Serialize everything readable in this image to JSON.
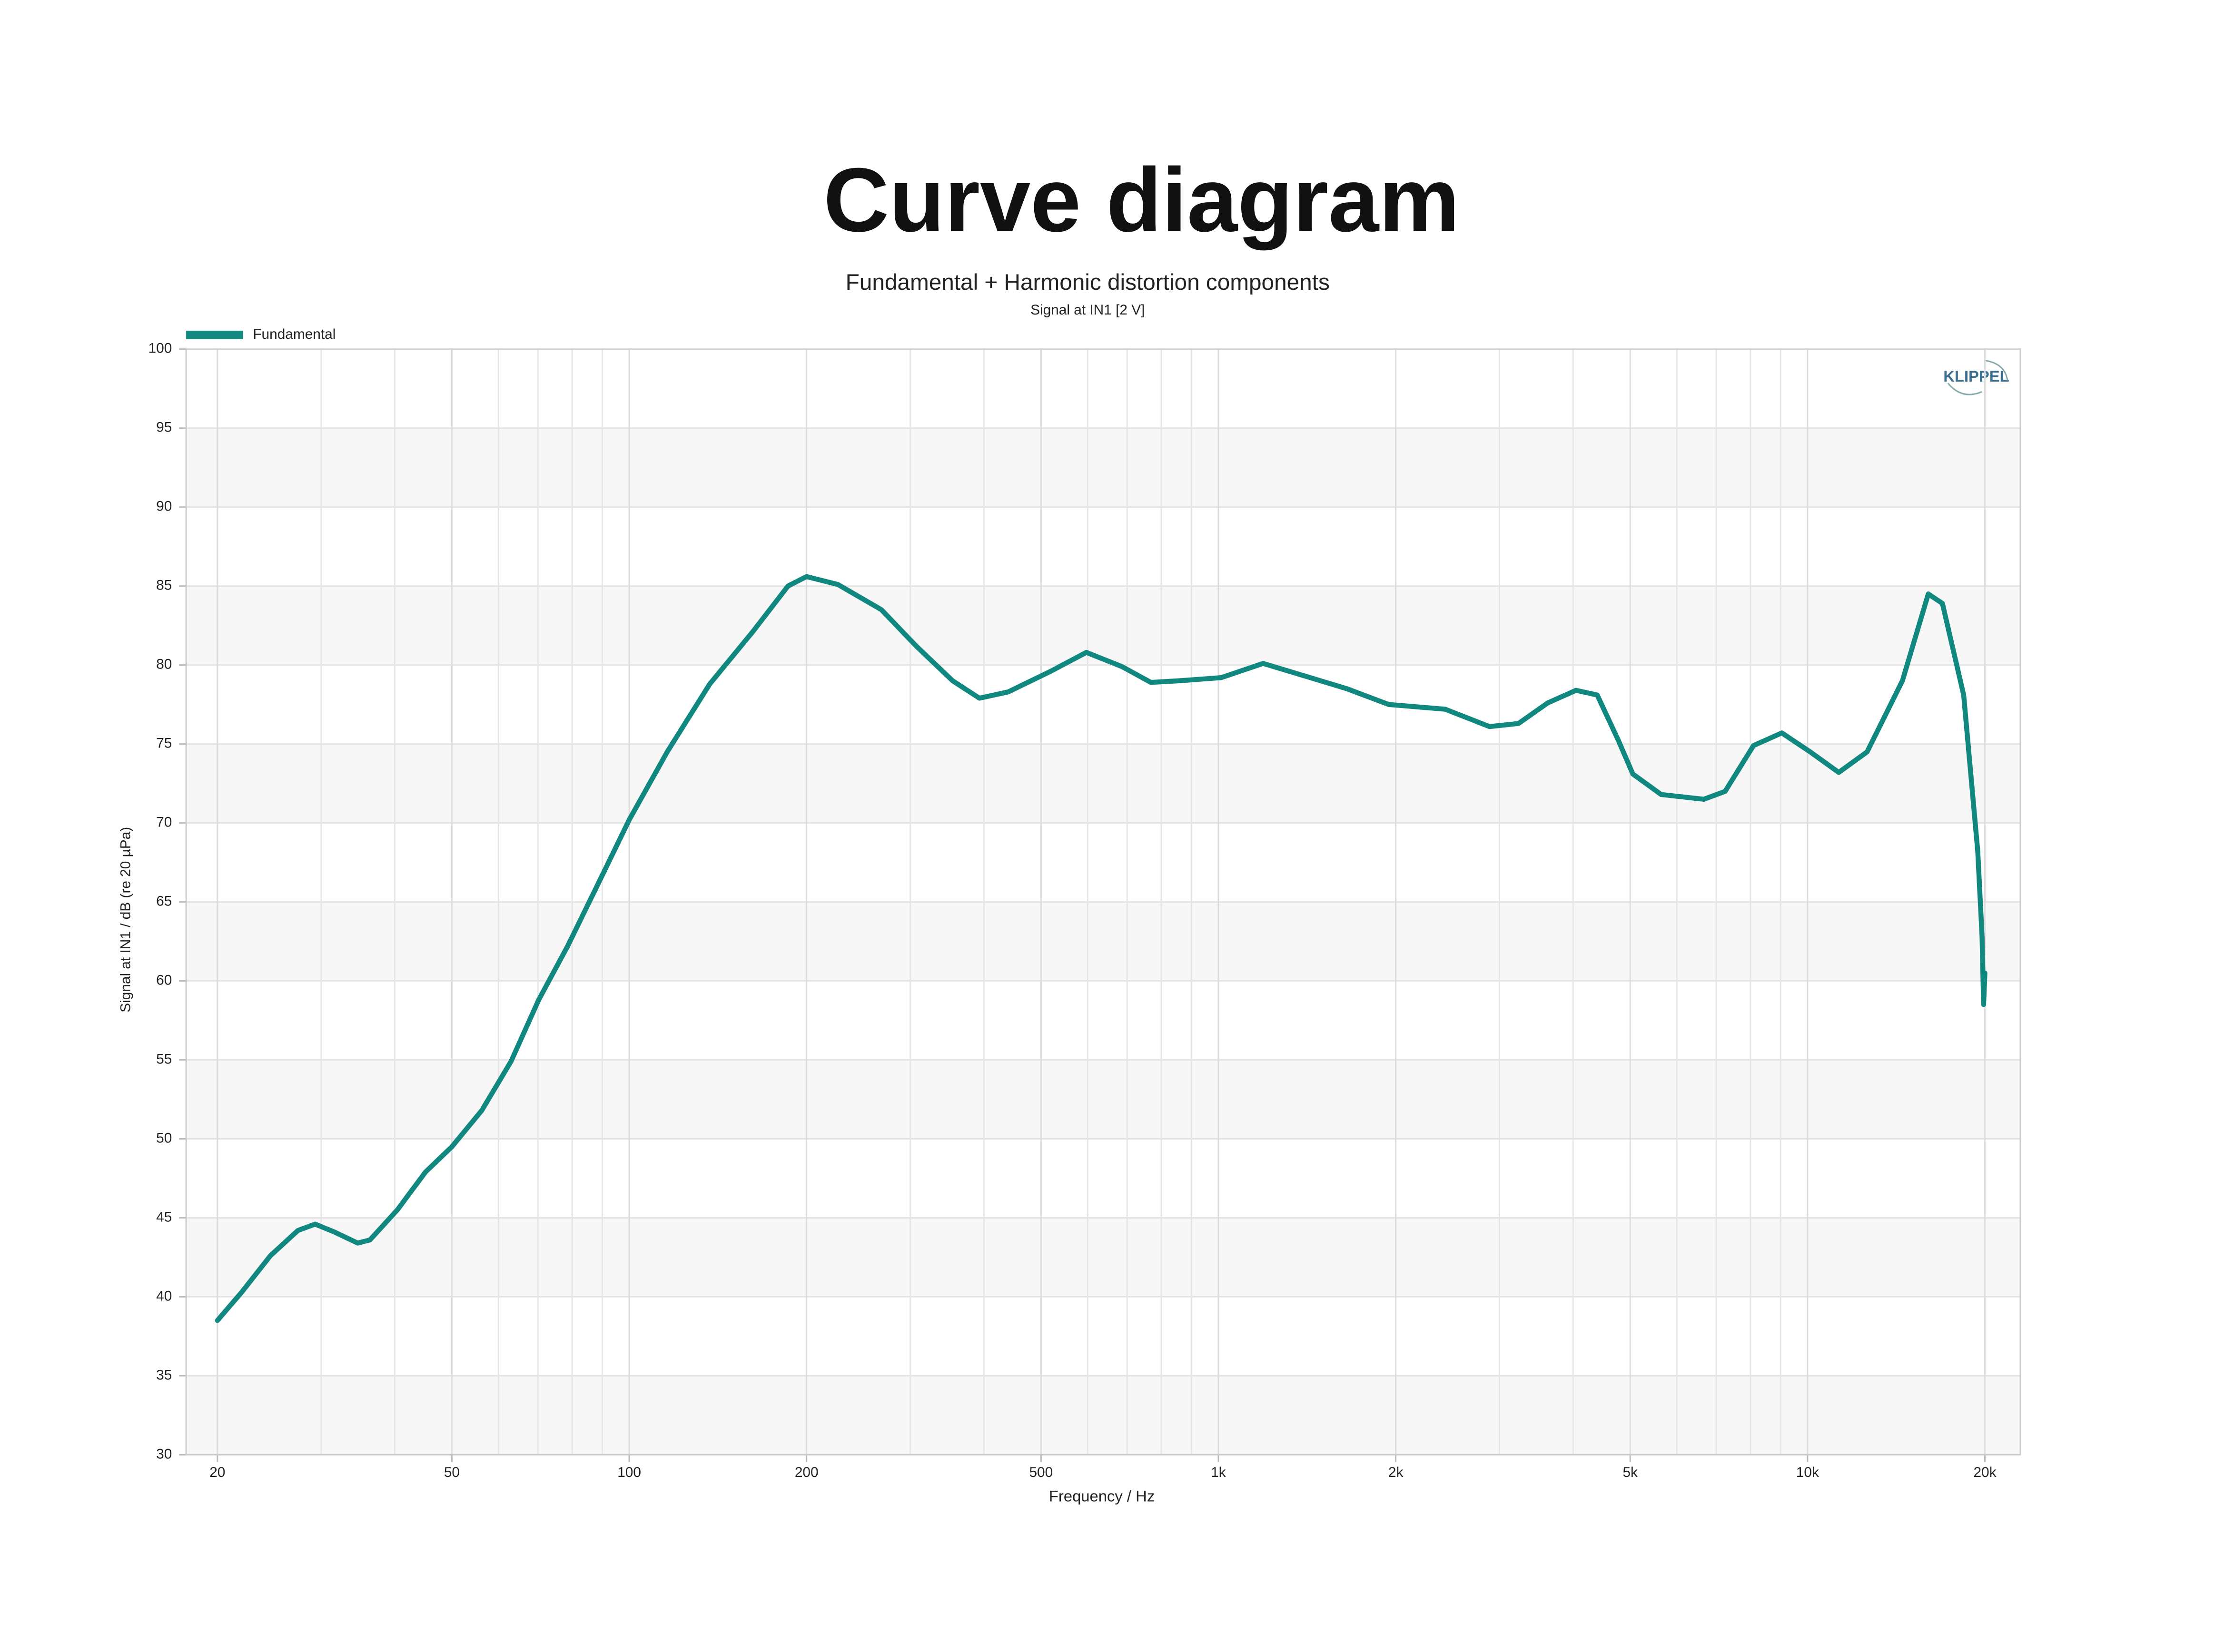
{
  "chart_data": {
    "type": "line",
    "title": "Curve diagram",
    "subtitle": "Fundamental + Harmonic distortion components",
    "subsubtitle": "Signal at IN1 [2 V]",
    "logo": "KLIPPEL",
    "x_label": "Frequency / Hz",
    "y_label": "Signal at IN1 / dB (re 20 µPa)",
    "x_log": true,
    "grid": true,
    "legend": "top-left",
    "xlim": [
      17.7,
      22970
    ],
    "ylim": [
      30,
      100
    ],
    "xticks": [
      20,
      50,
      100,
      200,
      500,
      {
        "value": 1000,
        "label": "1k"
      },
      {
        "value": 2000,
        "label": "2k"
      },
      {
        "value": 5000,
        "label": "5k"
      },
      {
        "value": 10000,
        "label": "10k"
      },
      {
        "value": 20000,
        "label": "20k"
      }
    ],
    "xminor": [
      30,
      40,
      60,
      70,
      80,
      90,
      300,
      400,
      600,
      700,
      800,
      900,
      3000,
      4000,
      6000,
      7000,
      8000,
      9000
    ],
    "yticks": [
      30,
      35,
      40,
      45,
      50,
      55,
      60,
      65,
      70,
      75,
      80,
      85,
      90,
      95,
      100
    ],
    "x": [
      20,
      22,
      24.6,
      27.4,
      29.3,
      31.6,
      34.6,
      36.3,
      40.4,
      45.1,
      50,
      56.2,
      63,
      70.2,
      78.6,
      87.9,
      100,
      116,
      137,
      162,
      186,
      200,
      226,
      268,
      307,
      354,
      393,
      440,
      519,
      597,
      686,
      768,
      856,
      1011,
      1191,
      1403,
      1652,
      1946,
      2427,
      2886,
      3232,
      3622,
      4046,
      4396,
      4778,
      5052,
      5644,
      6666,
      7246,
      8096,
      9044,
      10104,
      11296,
      12620,
      14488,
      16031,
      16940,
      18408,
      19450,
      19780,
      19900,
      20000
    ],
    "series": [
      {
        "name": "Fundamental",
        "color": "#108880",
        "values": [
          38.5,
          40.3,
          42.6,
          44.2,
          44.6,
          44.1,
          43.4,
          43.6,
          45.5,
          47.9,
          49.5,
          51.8,
          54.9,
          58.8,
          62.2,
          65.9,
          70.2,
          74.5,
          78.8,
          82.1,
          85.0,
          85.6,
          85.1,
          83.5,
          81.2,
          79.0,
          77.9,
          78.3,
          79.6,
          80.8,
          79.9,
          78.9,
          79.0,
          79.2,
          80.1,
          79.3,
          78.5,
          77.5,
          77.2,
          76.1,
          76.3,
          77.6,
          78.4,
          78.1,
          75.2,
          73.1,
          71.8,
          71.5,
          72.0,
          74.9,
          75.7,
          74.5,
          73.2,
          74.5,
          79.0,
          84.5,
          83.9,
          78.1,
          68.2,
          62.8,
          58.5,
          60.5
        ]
      }
    ]
  }
}
